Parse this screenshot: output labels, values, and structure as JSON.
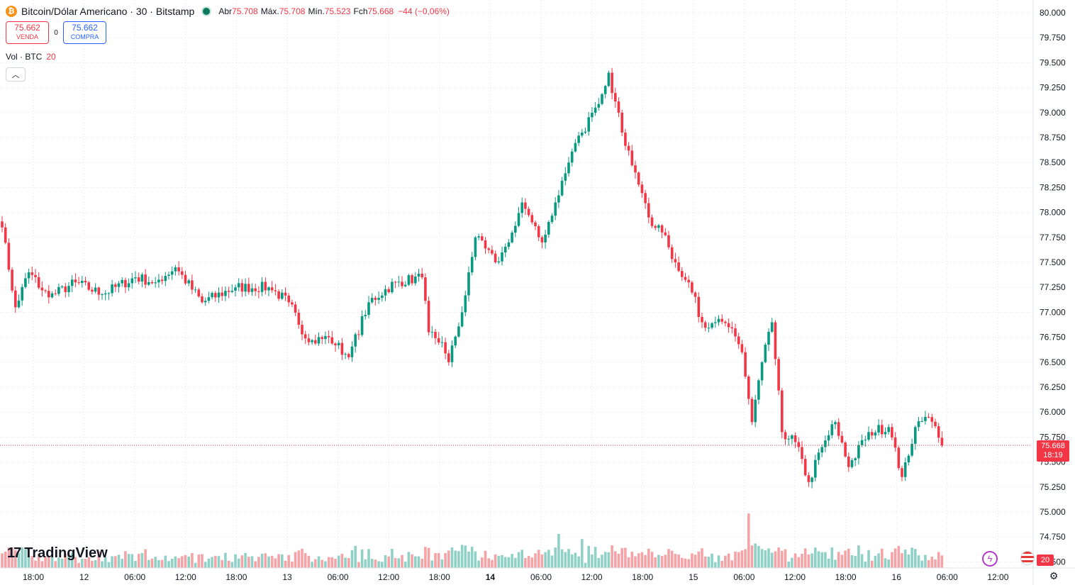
{
  "header": {
    "symbol_icon": "bitcoin-icon",
    "title": "Bitcoin/Dólar Americano · 30 · Bitstamp",
    "open_label": "Abr",
    "open_value": "75.708",
    "high_label": "Máx.",
    "high_value": "75.708",
    "low_label": "Mín.",
    "low_value": "75.523",
    "close_label": "Fch",
    "close_value": "75.668",
    "change": "−44 (−0,06%)"
  },
  "trade": {
    "sell_price": "75.662",
    "sell_label": "VENDA",
    "spread": "0",
    "buy_price": "75.662",
    "buy_label": "COMPRA"
  },
  "volume_legend": {
    "label": "Vol · BTC",
    "value": "20"
  },
  "logo": {
    "text": "TradingView"
  },
  "price_tag": {
    "price": "75.668",
    "countdown": "18:19"
  },
  "volume_tag": "20",
  "colors": {
    "up": "#089981",
    "down": "#f23645",
    "up_volume": "#8fd1c6",
    "down_volume": "#f5a3a6"
  },
  "icons": [
    "bitcoin-icon",
    "collapse-chevron-icon",
    "flash-icon",
    "flag-icon",
    "gear-icon"
  ],
  "chart_data": {
    "type": "candlestick",
    "interval": "30",
    "y_axis_ticks": [
      "80.000",
      "79.750",
      "79.500",
      "79.250",
      "79.000",
      "78.750",
      "78.500",
      "78.250",
      "78.000",
      "77.750",
      "77.500",
      "77.250",
      "77.000",
      "76.750",
      "76.500",
      "76.250",
      "76.000",
      "75.750",
      "75.500",
      "75.250",
      "75.000",
      "74.750",
      "74.500"
    ],
    "ylim": [
      74500,
      80000
    ],
    "x_axis_ticks": [
      "18:00",
      "12",
      "06:00",
      "12:00",
      "18:00",
      "13",
      "06:00",
      "12:00",
      "18:00",
      "14",
      "06:00",
      "12:00",
      "18:00",
      "15",
      "06:00",
      "12:00",
      "18:00",
      "16",
      "06:00",
      "12:00"
    ],
    "grid": true,
    "last_price": 75668,
    "anchors": [
      {
        "i": 0,
        "p": 77850
      },
      {
        "i": 4,
        "p": 77050
      },
      {
        "i": 8,
        "p": 77400
      },
      {
        "i": 14,
        "p": 77150
      },
      {
        "i": 22,
        "p": 77300
      },
      {
        "i": 30,
        "p": 77180
      },
      {
        "i": 40,
        "p": 77350
      },
      {
        "i": 46,
        "p": 77300
      },
      {
        "i": 52,
        "p": 77450
      },
      {
        "i": 60,
        "p": 77100
      },
      {
        "i": 70,
        "p": 77250
      },
      {
        "i": 80,
        "p": 77250
      },
      {
        "i": 86,
        "p": 77100
      },
      {
        "i": 92,
        "p": 76700
      },
      {
        "i": 98,
        "p": 76750
      },
      {
        "i": 104,
        "p": 76550
      },
      {
        "i": 110,
        "p": 77100
      },
      {
        "i": 118,
        "p": 77300
      },
      {
        "i": 126,
        "p": 77350
      },
      {
        "i": 128,
        "p": 76800
      },
      {
        "i": 132,
        "p": 76700
      },
      {
        "i": 134,
        "p": 76500
      },
      {
        "i": 138,
        "p": 77000
      },
      {
        "i": 142,
        "p": 77750
      },
      {
        "i": 148,
        "p": 77500
      },
      {
        "i": 152,
        "p": 77700
      },
      {
        "i": 156,
        "p": 78100
      },
      {
        "i": 162,
        "p": 77700
      },
      {
        "i": 166,
        "p": 78100
      },
      {
        "i": 170,
        "p": 78500
      },
      {
        "i": 174,
        "p": 78800
      },
      {
        "i": 178,
        "p": 79050
      },
      {
        "i": 182,
        "p": 79400
      },
      {
        "i": 186,
        "p": 78800
      },
      {
        "i": 190,
        "p": 78400
      },
      {
        "i": 194,
        "p": 77950
      },
      {
        "i": 198,
        "p": 77800
      },
      {
        "i": 202,
        "p": 77500
      },
      {
        "i": 206,
        "p": 77300
      },
      {
        "i": 210,
        "p": 76900
      },
      {
        "i": 214,
        "p": 76900
      },
      {
        "i": 218,
        "p": 76850
      },
      {
        "i": 222,
        "p": 76600
      },
      {
        "i": 225,
        "p": 75900
      },
      {
        "i": 228,
        "p": 76500
      },
      {
        "i": 231,
        "p": 76900
      },
      {
        "i": 234,
        "p": 75800
      },
      {
        "i": 238,
        "p": 75700
      },
      {
        "i": 242,
        "p": 75300
      },
      {
        "i": 246,
        "p": 75650
      },
      {
        "i": 250,
        "p": 75900
      },
      {
        "i": 254,
        "p": 75450
      },
      {
        "i": 260,
        "p": 75800
      },
      {
        "i": 266,
        "p": 75850
      },
      {
        "i": 270,
        "p": 75350
      },
      {
        "i": 274,
        "p": 75850
      },
      {
        "i": 278,
        "p": 75950
      },
      {
        "i": 282,
        "p": 75668
      }
    ],
    "volume_spikes": [
      {
        "i": 127,
        "v": 0.62
      },
      {
        "i": 167,
        "v": 1.0
      },
      {
        "i": 174,
        "v": 0.85
      },
      {
        "i": 178,
        "v": 0.62
      },
      {
        "i": 210,
        "v": 0.58
      },
      {
        "i": 224,
        "v": 1.6
      },
      {
        "i": 226,
        "v": 0.72
      },
      {
        "i": 233,
        "v": 0.6
      },
      {
        "i": 235,
        "v": 0.55
      }
    ]
  }
}
